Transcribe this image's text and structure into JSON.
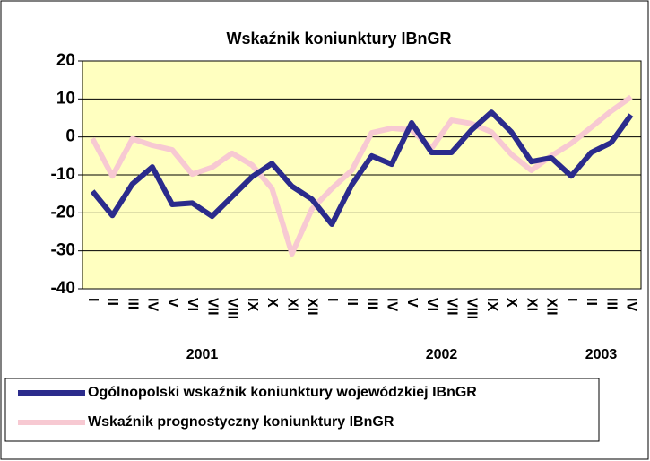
{
  "chart_data": {
    "type": "line",
    "title": "Wskaźnik koniunktury IBnGR",
    "categories": [
      "I",
      "II",
      "III",
      "IV",
      "V",
      "VI",
      "VII",
      "VIII",
      "IX",
      "X",
      "XI",
      "XII",
      "I",
      "II",
      "III",
      "IV",
      "V",
      "VI",
      "VII",
      "VIII",
      "IX",
      "X",
      "XI",
      "XII",
      "I",
      "II",
      "III",
      "IV"
    ],
    "groups": [
      "2001",
      "2002",
      "2003"
    ],
    "series": [
      {
        "name": "Ogólnopolski wskaźnik koniunktury wojewódzkiej IBnGR",
        "color": "#2b2b8c",
        "values": [
          -14.3,
          -20.7,
          -12.4,
          -7.9,
          -17.8,
          -17.4,
          -20.9,
          -15.7,
          -10.5,
          -7,
          -13,
          -16.4,
          -23,
          -12.6,
          -5,
          -7.2,
          3.7,
          -4.1,
          -4.1,
          1.8,
          6.5,
          1.3,
          -6.5,
          -5.5,
          -10.3,
          -4.1,
          -1.5,
          5.8
        ]
      },
      {
        "name": "Wskaźnik prognostyczny koniunktury IBnGR",
        "color": "#f7c9d2",
        "values": [
          -0.4,
          -10.3,
          -0.5,
          -2.2,
          -3.4,
          -9.8,
          -8,
          -4.3,
          -7.4,
          -13.6,
          -30.8,
          -19,
          -13.6,
          -8.8,
          1.1,
          2.3,
          1.8,
          -3,
          4.4,
          3.5,
          1.3,
          -4.6,
          -8.8,
          -5,
          -1.7,
          2.5,
          6.8,
          10.5
        ]
      }
    ],
    "ylim": [
      -40,
      20
    ],
    "yticks": [
      -40,
      -30,
      -20,
      -10,
      0,
      10,
      20
    ],
    "grid": true,
    "plot_background": "#ffffc0"
  }
}
